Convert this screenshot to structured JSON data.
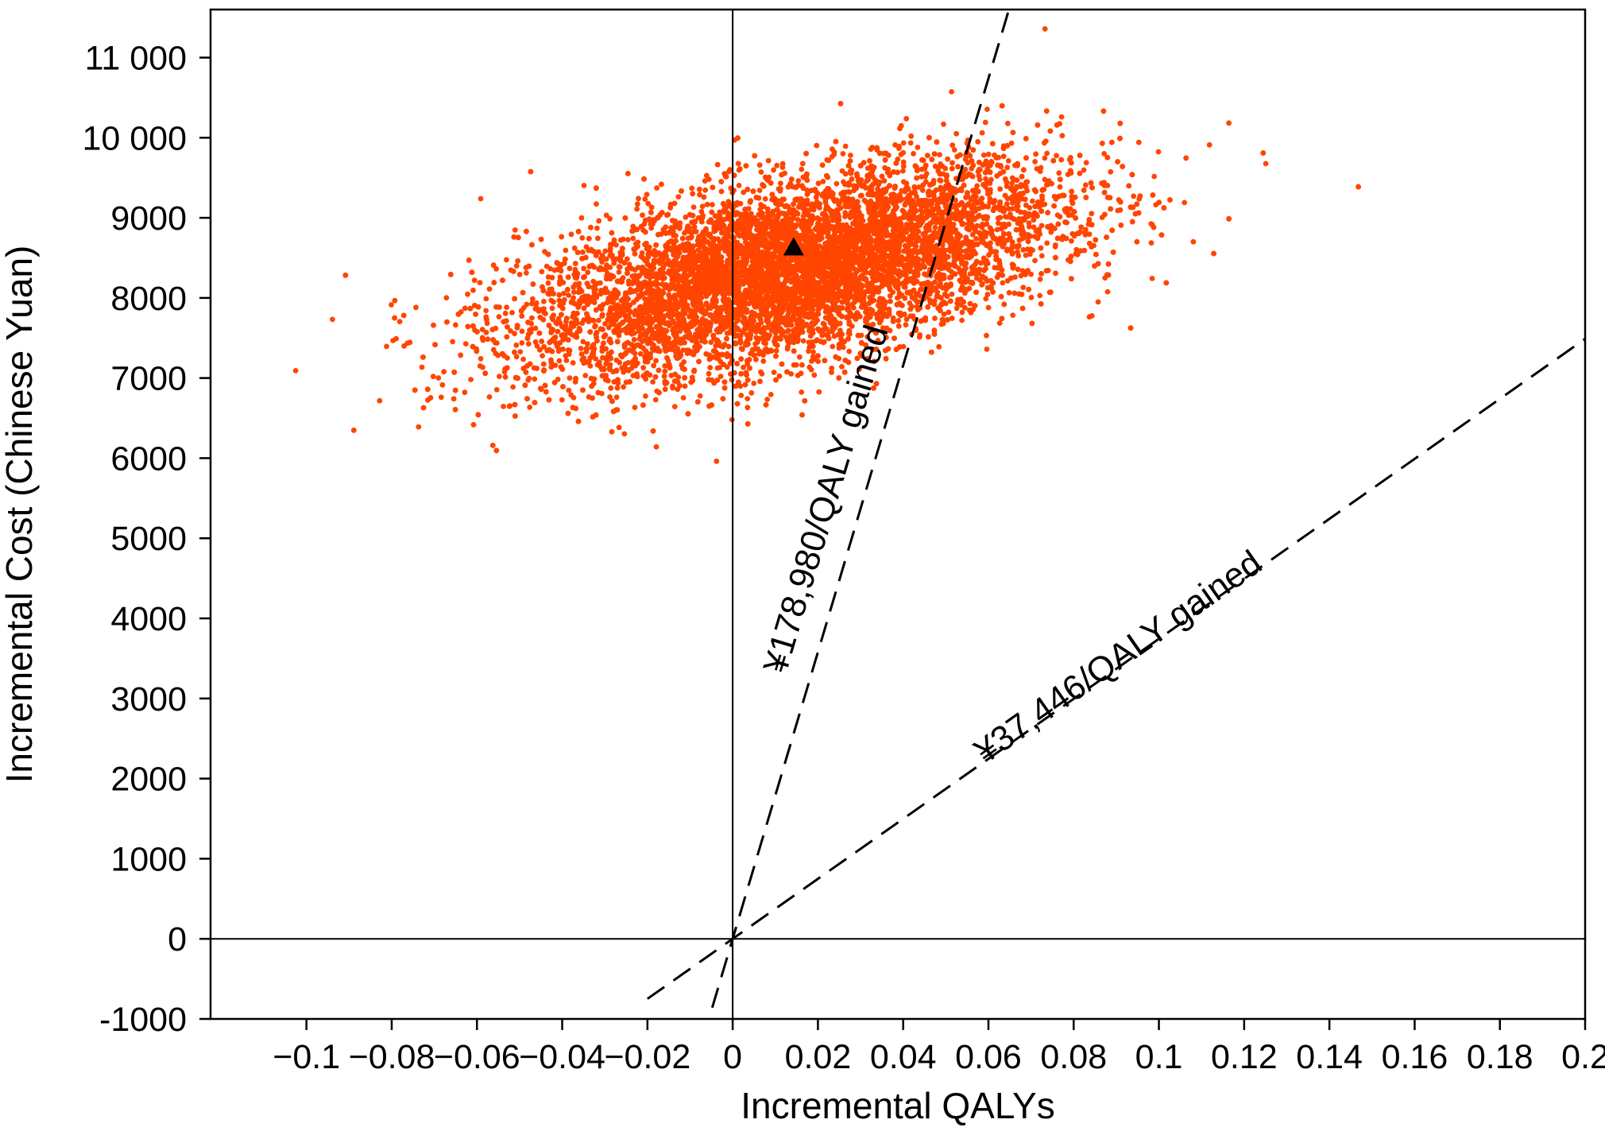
{
  "chart_data": {
    "type": "scatter",
    "xlabel": "Incremental QALYs",
    "ylabel": "Incremental Cost (Chinese Yuan)",
    "xlim": [
      -0.1225,
      0.2
    ],
    "ylim": [
      -1000,
      11600
    ],
    "x_ticks": [
      -0.1,
      -0.08,
      -0.06,
      -0.04,
      -0.02,
      0,
      0.02,
      0.04,
      0.06,
      0.08,
      0.1,
      0.12,
      0.14,
      0.16,
      0.18,
      0.2
    ],
    "x_tick_labels": [
      "−0.1",
      "−0.08",
      "−0.06",
      "−0.04",
      "−0.02",
      "0",
      "0.02",
      "0.04",
      "0.06",
      "0.08",
      "0.1",
      "0.12",
      "0.14",
      "0.16",
      "0.18",
      "0.2"
    ],
    "y_ticks": [
      -1000,
      0,
      1000,
      2000,
      3000,
      4000,
      5000,
      6000,
      7000,
      8000,
      9000,
      10000,
      11000
    ],
    "y_tick_labels": [
      "-1000",
      "0",
      "1000",
      "2000",
      "3000",
      "4000",
      "5000",
      "6000",
      "7000",
      "8000",
      "9000",
      "10 000",
      "11 000"
    ],
    "grid": false,
    "reference_lines": [
      {
        "type": "vertical",
        "x": 0
      },
      {
        "type": "horizontal",
        "y": 0
      }
    ],
    "threshold_lines": [
      {
        "label": "¥178,980/QALY gained",
        "slope": 178980,
        "x_range": [
          -0.0048,
          0.0655
        ],
        "style": "dashed"
      },
      {
        "label": "¥37,446/QALY gained",
        "slope": 37446,
        "x_range": [
          -0.02,
          0.2
        ],
        "style": "dashed"
      }
    ],
    "scatter_series": {
      "color": "#ff4500",
      "point_count": 10000,
      "center": [
        0.014,
        8350
      ],
      "sd_x": 0.031,
      "sd_y": 650,
      "correlation": 0.55
    },
    "mean_point": {
      "x": 0.0143,
      "y": 8620,
      "marker": "triangle",
      "color": "#000000"
    }
  }
}
